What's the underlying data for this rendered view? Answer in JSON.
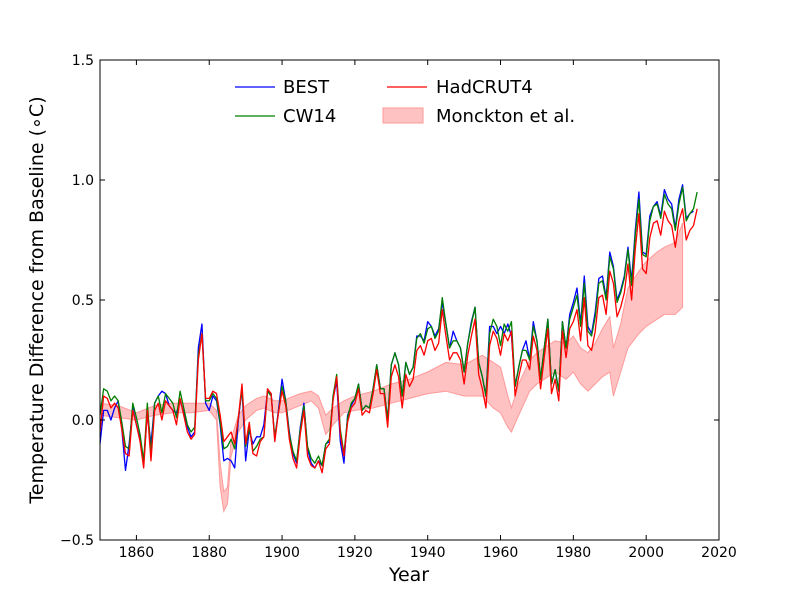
{
  "chart_data": {
    "type": "line",
    "title": "",
    "xlabel": "Year",
    "ylabel": "Temperature Difference from Baseline (∘C)",
    "xlim": [
      1850,
      2020
    ],
    "ylim": [
      -0.5,
      1.5
    ],
    "xticks": [
      1860,
      1880,
      1900,
      1920,
      1940,
      1960,
      1980,
      2000,
      2020
    ],
    "xtick_labels": [
      "1860",
      "1880",
      "1900",
      "1920",
      "1940",
      "1960",
      "1980",
      "2000",
      "2020"
    ],
    "yticks": [
      -0.5,
      0.0,
      0.5,
      1.0,
      1.5
    ],
    "ytick_labels": [
      "−0.5",
      "0.0",
      "0.5",
      "1.0",
      "1.5"
    ],
    "grid": false,
    "legend_placement": "top-center",
    "series": [
      {
        "name": "BEST",
        "color": "#0000ff",
        "start_year": 1850,
        "values": [
          -0.1,
          0.04,
          0.04,
          0.0,
          0.05,
          0.08,
          -0.04,
          -0.21,
          -0.1,
          0.05,
          -0.02,
          -0.08,
          -0.18,
          0.03,
          -0.1,
          0.07,
          0.1,
          0.12,
          0.11,
          0.06,
          0.04,
          0.03,
          0.08,
          0.03,
          -0.03,
          -0.07,
          -0.05,
          0.3,
          0.4,
          0.07,
          0.04,
          0.1,
          0.08,
          -0.02,
          -0.17,
          -0.16,
          -0.17,
          -0.2,
          0.0,
          0.13,
          -0.17,
          -0.04,
          -0.1,
          -0.07,
          -0.07,
          -0.02,
          0.12,
          0.11,
          -0.08,
          0.04,
          0.17,
          0.08,
          -0.05,
          -0.14,
          -0.18,
          -0.03,
          0.07,
          -0.12,
          -0.18,
          -0.2,
          -0.17,
          -0.19,
          -0.1,
          -0.09,
          0.09,
          0.16,
          -0.09,
          -0.18,
          0.02,
          0.06,
          0.09,
          0.15,
          0.04,
          0.06,
          0.05,
          0.13,
          0.23,
          0.13,
          0.13,
          0.0,
          0.23,
          0.28,
          0.23,
          0.1,
          0.24,
          0.19,
          0.22,
          0.35,
          0.35,
          0.33,
          0.41,
          0.39,
          0.35,
          0.38,
          0.49,
          0.4,
          0.3,
          0.37,
          0.33,
          0.3,
          0.2,
          0.32,
          0.41,
          0.47,
          0.24,
          0.18,
          0.1,
          0.39,
          0.39,
          0.36,
          0.39,
          0.36,
          0.4,
          0.35,
          0.14,
          0.22,
          0.29,
          0.33,
          0.25,
          0.41,
          0.33,
          0.17,
          0.3,
          0.42,
          0.15,
          0.21,
          0.12,
          0.41,
          0.3,
          0.44,
          0.49,
          0.55,
          0.4,
          0.6,
          0.39,
          0.36,
          0.45,
          0.59,
          0.6,
          0.51,
          0.7,
          0.64,
          0.5,
          0.54,
          0.6,
          0.72,
          0.58,
          0.79,
          0.95,
          0.7,
          0.69,
          0.85,
          0.89,
          0.91,
          0.85,
          0.96,
          0.92,
          0.9,
          0.8,
          0.92,
          0.98,
          0.84,
          0.86,
          0.87
        ]
      },
      {
        "name": "CW14",
        "color": "#008000",
        "start_year": 1850,
        "values": [
          0.02,
          0.13,
          0.12,
          0.08,
          0.1,
          0.08,
          -0.01,
          -0.11,
          -0.12,
          0.07,
          0.01,
          -0.06,
          -0.17,
          0.07,
          -0.14,
          0.07,
          0.1,
          0.03,
          0.11,
          0.09,
          0.07,
          0.01,
          0.12,
          0.05,
          -0.02,
          -0.05,
          -0.03,
          0.27,
          0.36,
          0.08,
          0.08,
          0.11,
          0.09,
          -0.01,
          -0.12,
          -0.11,
          -0.08,
          -0.12,
          0.01,
          0.13,
          -0.11,
          -0.03,
          -0.13,
          -0.11,
          -0.08,
          -0.07,
          0.12,
          0.1,
          -0.07,
          0.03,
          0.14,
          0.08,
          -0.06,
          -0.13,
          -0.17,
          -0.04,
          0.06,
          -0.11,
          -0.16,
          -0.18,
          -0.15,
          -0.19,
          -0.1,
          -0.08,
          0.1,
          0.19,
          -0.04,
          -0.14,
          0.01,
          0.07,
          0.09,
          0.15,
          0.04,
          0.06,
          0.05,
          0.13,
          0.23,
          0.13,
          0.13,
          0.0,
          0.23,
          0.28,
          0.23,
          0.1,
          0.24,
          0.19,
          0.22,
          0.34,
          0.36,
          0.32,
          0.38,
          0.39,
          0.34,
          0.37,
          0.51,
          0.4,
          0.3,
          0.33,
          0.33,
          0.3,
          0.2,
          0.32,
          0.4,
          0.47,
          0.24,
          0.18,
          0.1,
          0.36,
          0.42,
          0.39,
          0.31,
          0.4,
          0.37,
          0.41,
          0.14,
          0.22,
          0.29,
          0.29,
          0.25,
          0.39,
          0.33,
          0.17,
          0.3,
          0.42,
          0.15,
          0.21,
          0.12,
          0.41,
          0.3,
          0.42,
          0.47,
          0.52,
          0.39,
          0.57,
          0.37,
          0.35,
          0.43,
          0.57,
          0.58,
          0.5,
          0.68,
          0.63,
          0.49,
          0.53,
          0.59,
          0.71,
          0.56,
          0.77,
          0.92,
          0.69,
          0.68,
          0.83,
          0.89,
          0.9,
          0.84,
          0.94,
          0.9,
          0.88,
          0.79,
          0.9,
          0.97,
          0.83,
          0.86,
          0.88,
          0.95
        ]
      },
      {
        "name": "HadCRUT4",
        "color": "#ff0000",
        "start_year": 1850,
        "values": [
          -0.05,
          0.1,
          0.09,
          0.05,
          0.07,
          0.05,
          -0.04,
          -0.14,
          -0.15,
          0.04,
          -0.02,
          -0.09,
          -0.2,
          0.04,
          -0.17,
          0.04,
          0.07,
          0.0,
          0.08,
          0.06,
          0.04,
          -0.02,
          0.09,
          0.02,
          -0.05,
          -0.08,
          -0.06,
          0.25,
          0.36,
          0.09,
          0.09,
          0.12,
          0.11,
          0.02,
          -0.09,
          -0.07,
          -0.05,
          -0.1,
          0.01,
          0.15,
          -0.1,
          -0.01,
          -0.14,
          -0.15,
          -0.09,
          -0.07,
          0.13,
          0.11,
          -0.09,
          0.03,
          0.12,
          0.06,
          -0.08,
          -0.16,
          -0.2,
          -0.06,
          0.04,
          -0.15,
          -0.19,
          -0.2,
          -0.17,
          -0.22,
          -0.12,
          -0.1,
          0.08,
          0.18,
          -0.06,
          -0.15,
          -0.01,
          0.05,
          0.07,
          0.13,
          0.02,
          0.04,
          0.03,
          0.11,
          0.21,
          0.11,
          0.11,
          -0.03,
          0.18,
          0.23,
          0.18,
          0.05,
          0.19,
          0.14,
          0.17,
          0.29,
          0.31,
          0.27,
          0.33,
          0.34,
          0.29,
          0.32,
          0.46,
          0.35,
          0.25,
          0.28,
          0.28,
          0.25,
          0.15,
          0.27,
          0.35,
          0.42,
          0.19,
          0.13,
          0.05,
          0.31,
          0.37,
          0.34,
          0.27,
          0.36,
          0.33,
          0.37,
          0.1,
          0.18,
          0.25,
          0.25,
          0.21,
          0.35,
          0.29,
          0.13,
          0.26,
          0.38,
          0.11,
          0.17,
          0.08,
          0.37,
          0.26,
          0.38,
          0.41,
          0.46,
          0.33,
          0.51,
          0.31,
          0.29,
          0.37,
          0.51,
          0.52,
          0.44,
          0.62,
          0.57,
          0.43,
          0.47,
          0.53,
          0.65,
          0.5,
          0.71,
          0.86,
          0.63,
          0.61,
          0.76,
          0.82,
          0.83,
          0.77,
          0.87,
          0.83,
          0.81,
          0.72,
          0.83,
          0.88,
          0.75,
          0.79,
          0.81,
          0.88
        ]
      }
    ],
    "band": {
      "name": "Monckton et al.",
      "color": "#ff9999",
      "years": [
        1850,
        1855,
        1860,
        1865,
        1870,
        1875,
        1880,
        1882,
        1883,
        1884,
        1885,
        1886,
        1888,
        1890,
        1893,
        1895,
        1898,
        1900,
        1905,
        1908,
        1910,
        1912,
        1914,
        1917,
        1920,
        1925,
        1930,
        1935,
        1940,
        1945,
        1950,
        1955,
        1958,
        1960,
        1962,
        1963,
        1965,
        1968,
        1970,
        1973,
        1975,
        1978,
        1980,
        1982,
        1984,
        1986,
        1988,
        1990,
        1991,
        1993,
        1995,
        1998,
        2000,
        2003,
        2005,
        2008,
        2010
      ],
      "lower": [
        0.02,
        0.01,
        0.0,
        0.02,
        0.03,
        0.03,
        0.04,
        0.0,
        -0.28,
        -0.38,
        -0.35,
        -0.15,
        -0.05,
        0.0,
        0.04,
        0.05,
        0.03,
        0.03,
        0.06,
        0.08,
        0.05,
        -0.06,
        -0.02,
        0.03,
        0.04,
        0.05,
        0.07,
        0.09,
        0.11,
        0.12,
        0.1,
        0.1,
        0.05,
        0.03,
        -0.03,
        -0.05,
        0.02,
        0.12,
        0.15,
        0.18,
        0.2,
        0.17,
        0.2,
        0.15,
        0.12,
        0.15,
        0.18,
        0.2,
        0.1,
        0.2,
        0.3,
        0.36,
        0.39,
        0.42,
        0.44,
        0.44,
        0.47
      ],
      "upper": [
        0.07,
        0.06,
        0.03,
        0.06,
        0.07,
        0.07,
        0.07,
        0.04,
        -0.18,
        -0.3,
        -0.28,
        -0.08,
        0.02,
        0.06,
        0.09,
        0.1,
        0.08,
        0.08,
        0.11,
        0.12,
        0.1,
        0.02,
        0.05,
        0.08,
        0.1,
        0.12,
        0.15,
        0.17,
        0.2,
        0.24,
        0.23,
        0.27,
        0.24,
        0.22,
        0.1,
        0.05,
        0.15,
        0.25,
        0.28,
        0.31,
        0.33,
        0.32,
        0.35,
        0.3,
        0.28,
        0.32,
        0.38,
        0.43,
        0.3,
        0.4,
        0.55,
        0.62,
        0.66,
        0.7,
        0.72,
        0.74,
        0.82
      ]
    },
    "legend": [
      "BEST",
      "CW14",
      "HadCRUT4",
      "Monckton et al."
    ]
  }
}
